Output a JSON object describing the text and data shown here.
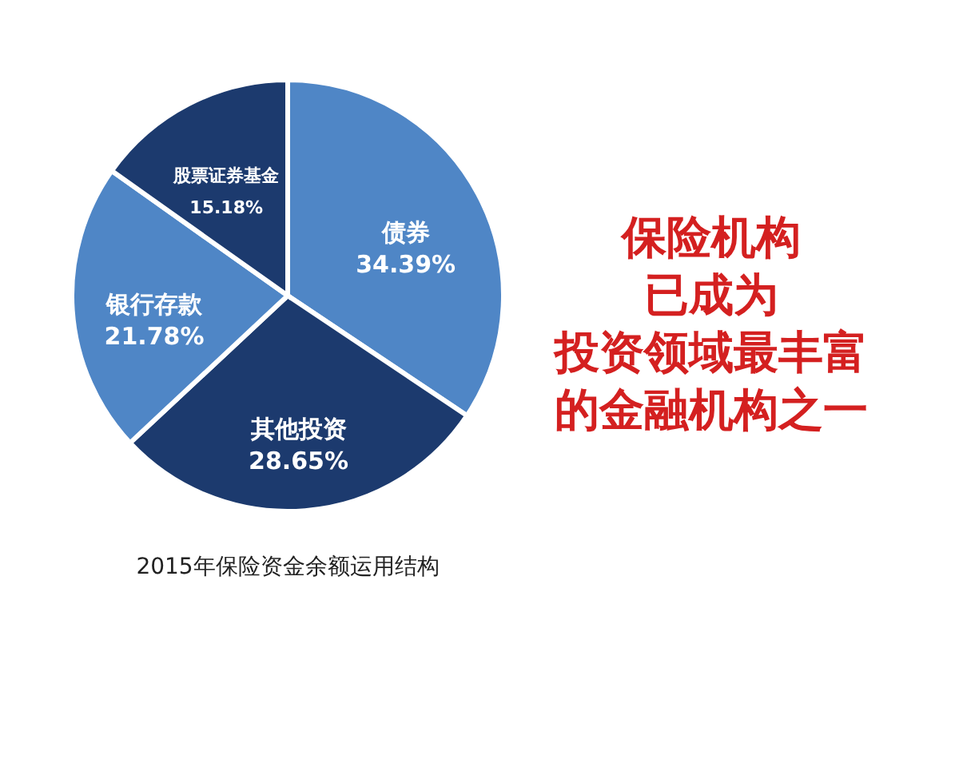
{
  "chart_data": {
    "type": "pie",
    "title": "2015年保险资金余额运用结构",
    "categories": [
      "债券",
      "其他投资",
      "银行存款",
      "股票证券基金"
    ],
    "values": [
      34.39,
      28.65,
      21.78,
      15.18
    ],
    "value_labels": [
      "34.39%",
      "28.65%",
      "21.78%",
      "15.18%"
    ],
    "colors": [
      "#4f86c6",
      "#1c3a6e",
      "#4f86c6",
      "#1c3a6e"
    ],
    "annotations": [
      "保险机构",
      "已成为",
      "投资领域最丰富",
      "的金融机构之一"
    ]
  }
}
